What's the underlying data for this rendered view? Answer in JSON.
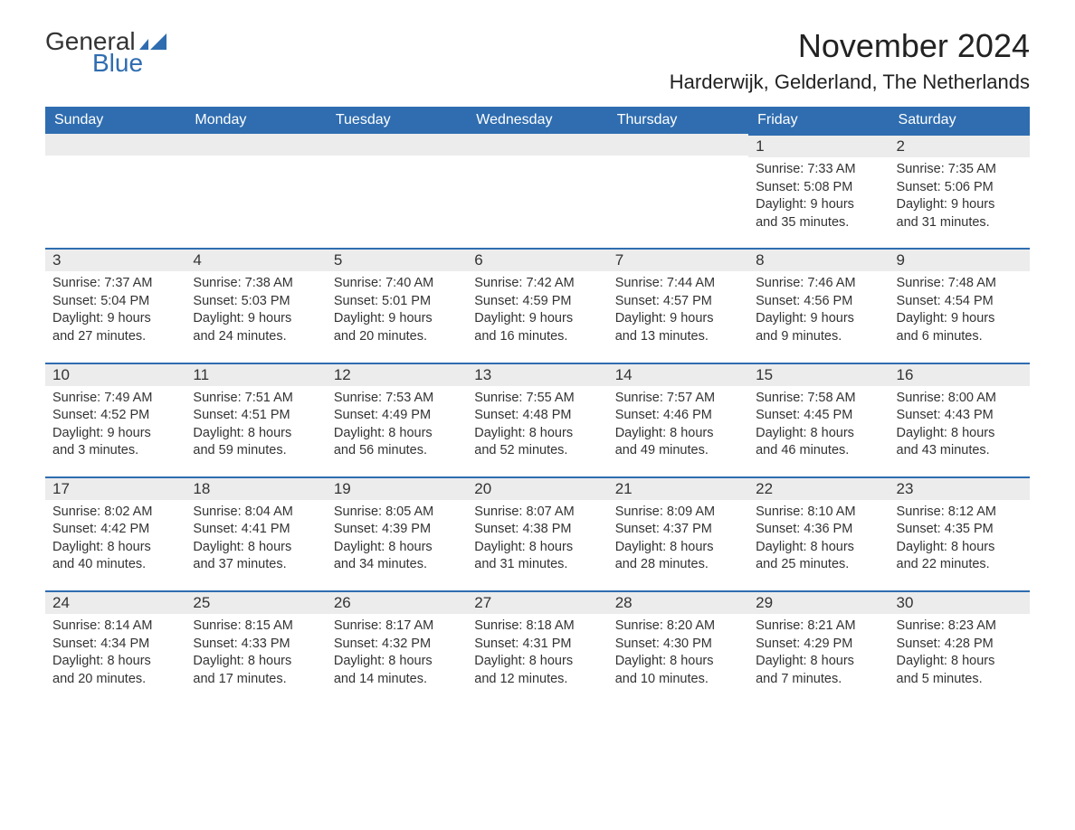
{
  "logo": {
    "general": "General",
    "blue": "Blue",
    "flag_color": "#2f6db0"
  },
  "title": "November 2024",
  "location": "Harderwijk, Gelderland, The Netherlands",
  "weekdays": [
    "Sunday",
    "Monday",
    "Tuesday",
    "Wednesday",
    "Thursday",
    "Friday",
    "Saturday"
  ],
  "colors": {
    "header_bg": "#2f6db0",
    "header_text": "#ffffff",
    "band_bg": "#ececec",
    "band_border": "#2f6db0",
    "text": "#333333",
    "background": "#ffffff"
  },
  "typography": {
    "title_fontsize": 36,
    "location_fontsize": 22,
    "weekday_fontsize": 16,
    "daynum_fontsize": 17,
    "body_fontsize": 14.5
  },
  "weeks": [
    [
      null,
      null,
      null,
      null,
      null,
      {
        "num": "1",
        "sunrise": "Sunrise: 7:33 AM",
        "sunset": "Sunset: 5:08 PM",
        "daylight1": "Daylight: 9 hours",
        "daylight2": "and 35 minutes."
      },
      {
        "num": "2",
        "sunrise": "Sunrise: 7:35 AM",
        "sunset": "Sunset: 5:06 PM",
        "daylight1": "Daylight: 9 hours",
        "daylight2": "and 31 minutes."
      }
    ],
    [
      {
        "num": "3",
        "sunrise": "Sunrise: 7:37 AM",
        "sunset": "Sunset: 5:04 PM",
        "daylight1": "Daylight: 9 hours",
        "daylight2": "and 27 minutes."
      },
      {
        "num": "4",
        "sunrise": "Sunrise: 7:38 AM",
        "sunset": "Sunset: 5:03 PM",
        "daylight1": "Daylight: 9 hours",
        "daylight2": "and 24 minutes."
      },
      {
        "num": "5",
        "sunrise": "Sunrise: 7:40 AM",
        "sunset": "Sunset: 5:01 PM",
        "daylight1": "Daylight: 9 hours",
        "daylight2": "and 20 minutes."
      },
      {
        "num": "6",
        "sunrise": "Sunrise: 7:42 AM",
        "sunset": "Sunset: 4:59 PM",
        "daylight1": "Daylight: 9 hours",
        "daylight2": "and 16 minutes."
      },
      {
        "num": "7",
        "sunrise": "Sunrise: 7:44 AM",
        "sunset": "Sunset: 4:57 PM",
        "daylight1": "Daylight: 9 hours",
        "daylight2": "and 13 minutes."
      },
      {
        "num": "8",
        "sunrise": "Sunrise: 7:46 AM",
        "sunset": "Sunset: 4:56 PM",
        "daylight1": "Daylight: 9 hours",
        "daylight2": "and 9 minutes."
      },
      {
        "num": "9",
        "sunrise": "Sunrise: 7:48 AM",
        "sunset": "Sunset: 4:54 PM",
        "daylight1": "Daylight: 9 hours",
        "daylight2": "and 6 minutes."
      }
    ],
    [
      {
        "num": "10",
        "sunrise": "Sunrise: 7:49 AM",
        "sunset": "Sunset: 4:52 PM",
        "daylight1": "Daylight: 9 hours",
        "daylight2": "and 3 minutes."
      },
      {
        "num": "11",
        "sunrise": "Sunrise: 7:51 AM",
        "sunset": "Sunset: 4:51 PM",
        "daylight1": "Daylight: 8 hours",
        "daylight2": "and 59 minutes."
      },
      {
        "num": "12",
        "sunrise": "Sunrise: 7:53 AM",
        "sunset": "Sunset: 4:49 PM",
        "daylight1": "Daylight: 8 hours",
        "daylight2": "and 56 minutes."
      },
      {
        "num": "13",
        "sunrise": "Sunrise: 7:55 AM",
        "sunset": "Sunset: 4:48 PM",
        "daylight1": "Daylight: 8 hours",
        "daylight2": "and 52 minutes."
      },
      {
        "num": "14",
        "sunrise": "Sunrise: 7:57 AM",
        "sunset": "Sunset: 4:46 PM",
        "daylight1": "Daylight: 8 hours",
        "daylight2": "and 49 minutes."
      },
      {
        "num": "15",
        "sunrise": "Sunrise: 7:58 AM",
        "sunset": "Sunset: 4:45 PM",
        "daylight1": "Daylight: 8 hours",
        "daylight2": "and 46 minutes."
      },
      {
        "num": "16",
        "sunrise": "Sunrise: 8:00 AM",
        "sunset": "Sunset: 4:43 PM",
        "daylight1": "Daylight: 8 hours",
        "daylight2": "and 43 minutes."
      }
    ],
    [
      {
        "num": "17",
        "sunrise": "Sunrise: 8:02 AM",
        "sunset": "Sunset: 4:42 PM",
        "daylight1": "Daylight: 8 hours",
        "daylight2": "and 40 minutes."
      },
      {
        "num": "18",
        "sunrise": "Sunrise: 8:04 AM",
        "sunset": "Sunset: 4:41 PM",
        "daylight1": "Daylight: 8 hours",
        "daylight2": "and 37 minutes."
      },
      {
        "num": "19",
        "sunrise": "Sunrise: 8:05 AM",
        "sunset": "Sunset: 4:39 PM",
        "daylight1": "Daylight: 8 hours",
        "daylight2": "and 34 minutes."
      },
      {
        "num": "20",
        "sunrise": "Sunrise: 8:07 AM",
        "sunset": "Sunset: 4:38 PM",
        "daylight1": "Daylight: 8 hours",
        "daylight2": "and 31 minutes."
      },
      {
        "num": "21",
        "sunrise": "Sunrise: 8:09 AM",
        "sunset": "Sunset: 4:37 PM",
        "daylight1": "Daylight: 8 hours",
        "daylight2": "and 28 minutes."
      },
      {
        "num": "22",
        "sunrise": "Sunrise: 8:10 AM",
        "sunset": "Sunset: 4:36 PM",
        "daylight1": "Daylight: 8 hours",
        "daylight2": "and 25 minutes."
      },
      {
        "num": "23",
        "sunrise": "Sunrise: 8:12 AM",
        "sunset": "Sunset: 4:35 PM",
        "daylight1": "Daylight: 8 hours",
        "daylight2": "and 22 minutes."
      }
    ],
    [
      {
        "num": "24",
        "sunrise": "Sunrise: 8:14 AM",
        "sunset": "Sunset: 4:34 PM",
        "daylight1": "Daylight: 8 hours",
        "daylight2": "and 20 minutes."
      },
      {
        "num": "25",
        "sunrise": "Sunrise: 8:15 AM",
        "sunset": "Sunset: 4:33 PM",
        "daylight1": "Daylight: 8 hours",
        "daylight2": "and 17 minutes."
      },
      {
        "num": "26",
        "sunrise": "Sunrise: 8:17 AM",
        "sunset": "Sunset: 4:32 PM",
        "daylight1": "Daylight: 8 hours",
        "daylight2": "and 14 minutes."
      },
      {
        "num": "27",
        "sunrise": "Sunrise: 8:18 AM",
        "sunset": "Sunset: 4:31 PM",
        "daylight1": "Daylight: 8 hours",
        "daylight2": "and 12 minutes."
      },
      {
        "num": "28",
        "sunrise": "Sunrise: 8:20 AM",
        "sunset": "Sunset: 4:30 PM",
        "daylight1": "Daylight: 8 hours",
        "daylight2": "and 10 minutes."
      },
      {
        "num": "29",
        "sunrise": "Sunrise: 8:21 AM",
        "sunset": "Sunset: 4:29 PM",
        "daylight1": "Daylight: 8 hours",
        "daylight2": "and 7 minutes."
      },
      {
        "num": "30",
        "sunrise": "Sunrise: 8:23 AM",
        "sunset": "Sunset: 4:28 PM",
        "daylight1": "Daylight: 8 hours",
        "daylight2": "and 5 minutes."
      }
    ]
  ]
}
